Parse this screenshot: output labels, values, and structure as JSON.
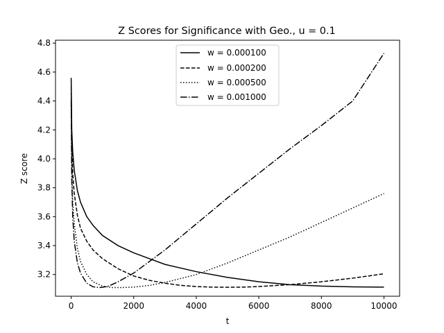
{
  "chart_data": {
    "type": "line",
    "title": "Z Scores for Significance with Geo., u = 0.1",
    "xlabel": "t",
    "ylabel": "Z score",
    "xlim": [
      -500,
      10500
    ],
    "ylim": [
      3.05,
      4.82
    ],
    "xticks": [
      0,
      2000,
      4000,
      6000,
      8000,
      10000
    ],
    "yticks": [
      3.2,
      3.4,
      3.6,
      3.8,
      4.0,
      4.2,
      4.4,
      4.6,
      4.8
    ],
    "legend_location": "upper center",
    "grid": false,
    "series": [
      {
        "name": "w = 0.000100",
        "linestyle": "solid",
        "color": "#000000",
        "x": [
          1,
          20,
          50,
          100,
          200,
          300,
          500,
          700,
          1000,
          1500,
          2000,
          2500,
          3000,
          4000,
          5000,
          6000,
          7000,
          8000,
          9000,
          10000
        ],
        "y": [
          4.56,
          4.2,
          4.05,
          3.92,
          3.78,
          3.7,
          3.6,
          3.54,
          3.47,
          3.4,
          3.35,
          3.31,
          3.27,
          3.22,
          3.18,
          3.15,
          3.13,
          3.12,
          3.115,
          3.113
        ]
      },
      {
        "name": "w = 0.000200",
        "linestyle": "dashed",
        "color": "#000000",
        "x": [
          1,
          20,
          50,
          100,
          200,
          300,
          500,
          700,
          1000,
          1500,
          2000,
          2500,
          3000,
          3500,
          4000,
          4500,
          5000,
          5500,
          6000,
          7000,
          8000,
          9000,
          10000
        ],
        "y": [
          4.5,
          4.1,
          3.9,
          3.76,
          3.61,
          3.52,
          3.43,
          3.37,
          3.31,
          3.24,
          3.19,
          3.16,
          3.14,
          3.125,
          3.117,
          3.113,
          3.112,
          3.113,
          3.117,
          3.13,
          3.15,
          3.175,
          3.205
        ]
      },
      {
        "name": "w = 0.000500",
        "linestyle": "dotted",
        "color": "#000000",
        "x": [
          1,
          20,
          50,
          100,
          200,
          300,
          500,
          700,
          1000,
          1300,
          1600,
          2000,
          2500,
          3000,
          4000,
          5000,
          6000,
          7000,
          8000,
          9000,
          10000
        ],
        "y": [
          4.45,
          3.95,
          3.7,
          3.55,
          3.38,
          3.29,
          3.2,
          3.15,
          3.12,
          3.11,
          3.11,
          3.113,
          3.125,
          3.145,
          3.2,
          3.28,
          3.37,
          3.46,
          3.56,
          3.66,
          3.76
        ]
      },
      {
        "name": "w = 0.001000",
        "linestyle": "dashdot",
        "color": "#000000",
        "x": [
          1,
          20,
          50,
          100,
          200,
          300,
          500,
          700,
          900,
          1000,
          1200,
          1500,
          2000,
          2500,
          3000,
          4000,
          5000,
          6000,
          7000,
          8000,
          9000,
          10000
        ],
        "y": [
          4.4,
          3.85,
          3.6,
          3.43,
          3.28,
          3.21,
          3.14,
          3.115,
          3.11,
          3.112,
          3.12,
          3.15,
          3.21,
          3.29,
          3.37,
          3.55,
          3.73,
          3.9,
          4.07,
          4.23,
          4.4,
          4.73
        ]
      }
    ]
  }
}
